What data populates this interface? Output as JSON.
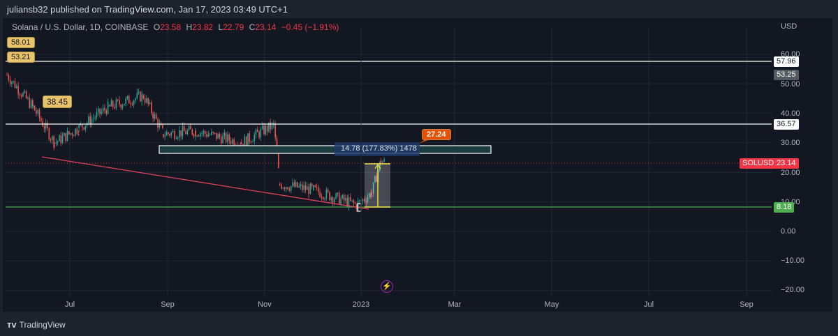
{
  "publish_bar": {
    "text": "juliansb32 published on TradingView.com, Jan 17, 2023 03:49 UTC+1"
  },
  "legend": {
    "symbol": "Solana / U.S. Dollar, 1D, COINBASE",
    "o_label": "O",
    "o": "23.58",
    "h_label": "H",
    "h": "23.82",
    "l_label": "L",
    "l": "22.79",
    "c_label": "C",
    "c": "23.14",
    "change": "−0.45 (−1.91%)"
  },
  "price_axis": {
    "currency": "USD",
    "ticks": [
      "60.00",
      "50.00",
      "40.00",
      "30.00",
      "20.00",
      "10.00",
      "0.00",
      "−10.00",
      "−20.00"
    ]
  },
  "time_axis": {
    "ticks": [
      "Jul",
      "Sep",
      "Nov",
      "2023",
      "Mar",
      "May",
      "Jul",
      "Sep"
    ]
  },
  "price_tags": {
    "resistance_high": "57.96",
    "prev_high": "53.25",
    "resistance_mid": "36.57",
    "symbol": "SOLUSD",
    "last": "23.14",
    "support": "8.18"
  },
  "annotations": {
    "note_1": "58.01",
    "note_2": "53.21",
    "note_3": "38.45",
    "measure": "14.78 (177.83%) 1478",
    "callout": "27.24"
  },
  "colors": {
    "up": "#26a69a",
    "down": "#ef5350",
    "last_price": "#f23645",
    "support": "#4caf50",
    "callout": "#e65100",
    "note": "#e8c36a"
  },
  "footer": {
    "brand": "TradingView"
  },
  "chart_data": {
    "type": "candlestick",
    "title": "Solana / U.S. Dollar, 1D, COINBASE",
    "ylabel": "USD",
    "ylim": [
      -24,
      66
    ],
    "x_ticks": [
      "Jul",
      "Sep",
      "Nov",
      "2023",
      "Mar",
      "May",
      "Jul",
      "Sep"
    ],
    "last_close": 23.14,
    "ohlc_last": {
      "open": 23.58,
      "high": 23.82,
      "low": 22.79,
      "close": 23.14,
      "change": -0.45,
      "change_pct": -1.91
    },
    "horizontal_levels": [
      57.96,
      36.57,
      8.18
    ],
    "approx_path": [
      {
        "t": "2022-05-15",
        "close": 53
      },
      {
        "t": "2022-06-01",
        "close": 42
      },
      {
        "t": "2022-06-15",
        "close": 30
      },
      {
        "t": "2022-07-01",
        "close": 35
      },
      {
        "t": "2022-07-20",
        "close": 42
      },
      {
        "t": "2022-08-12",
        "close": 46
      },
      {
        "t": "2022-08-25",
        "close": 33
      },
      {
        "t": "2022-09-15",
        "close": 34
      },
      {
        "t": "2022-10-15",
        "close": 30
      },
      {
        "t": "2022-11-05",
        "close": 36
      },
      {
        "t": "2022-11-09",
        "close": 16
      },
      {
        "t": "2022-12-01",
        "close": 14
      },
      {
        "t": "2022-12-29",
        "close": 9
      },
      {
        "t": "2023-01-08",
        "close": 13
      },
      {
        "t": "2023-01-14",
        "close": 24
      },
      {
        "t": "2023-01-17",
        "close": 23.14
      }
    ],
    "measure_tool": {
      "from": 8.18,
      "to": 22.96,
      "change": 14.78,
      "change_pct": 177.83,
      "ticks": 1478
    },
    "range_box": {
      "top": 28.9,
      "bottom": 26.4
    },
    "trendline": {
      "from": 25.8,
      "to": 7.5
    },
    "grid": true
  }
}
